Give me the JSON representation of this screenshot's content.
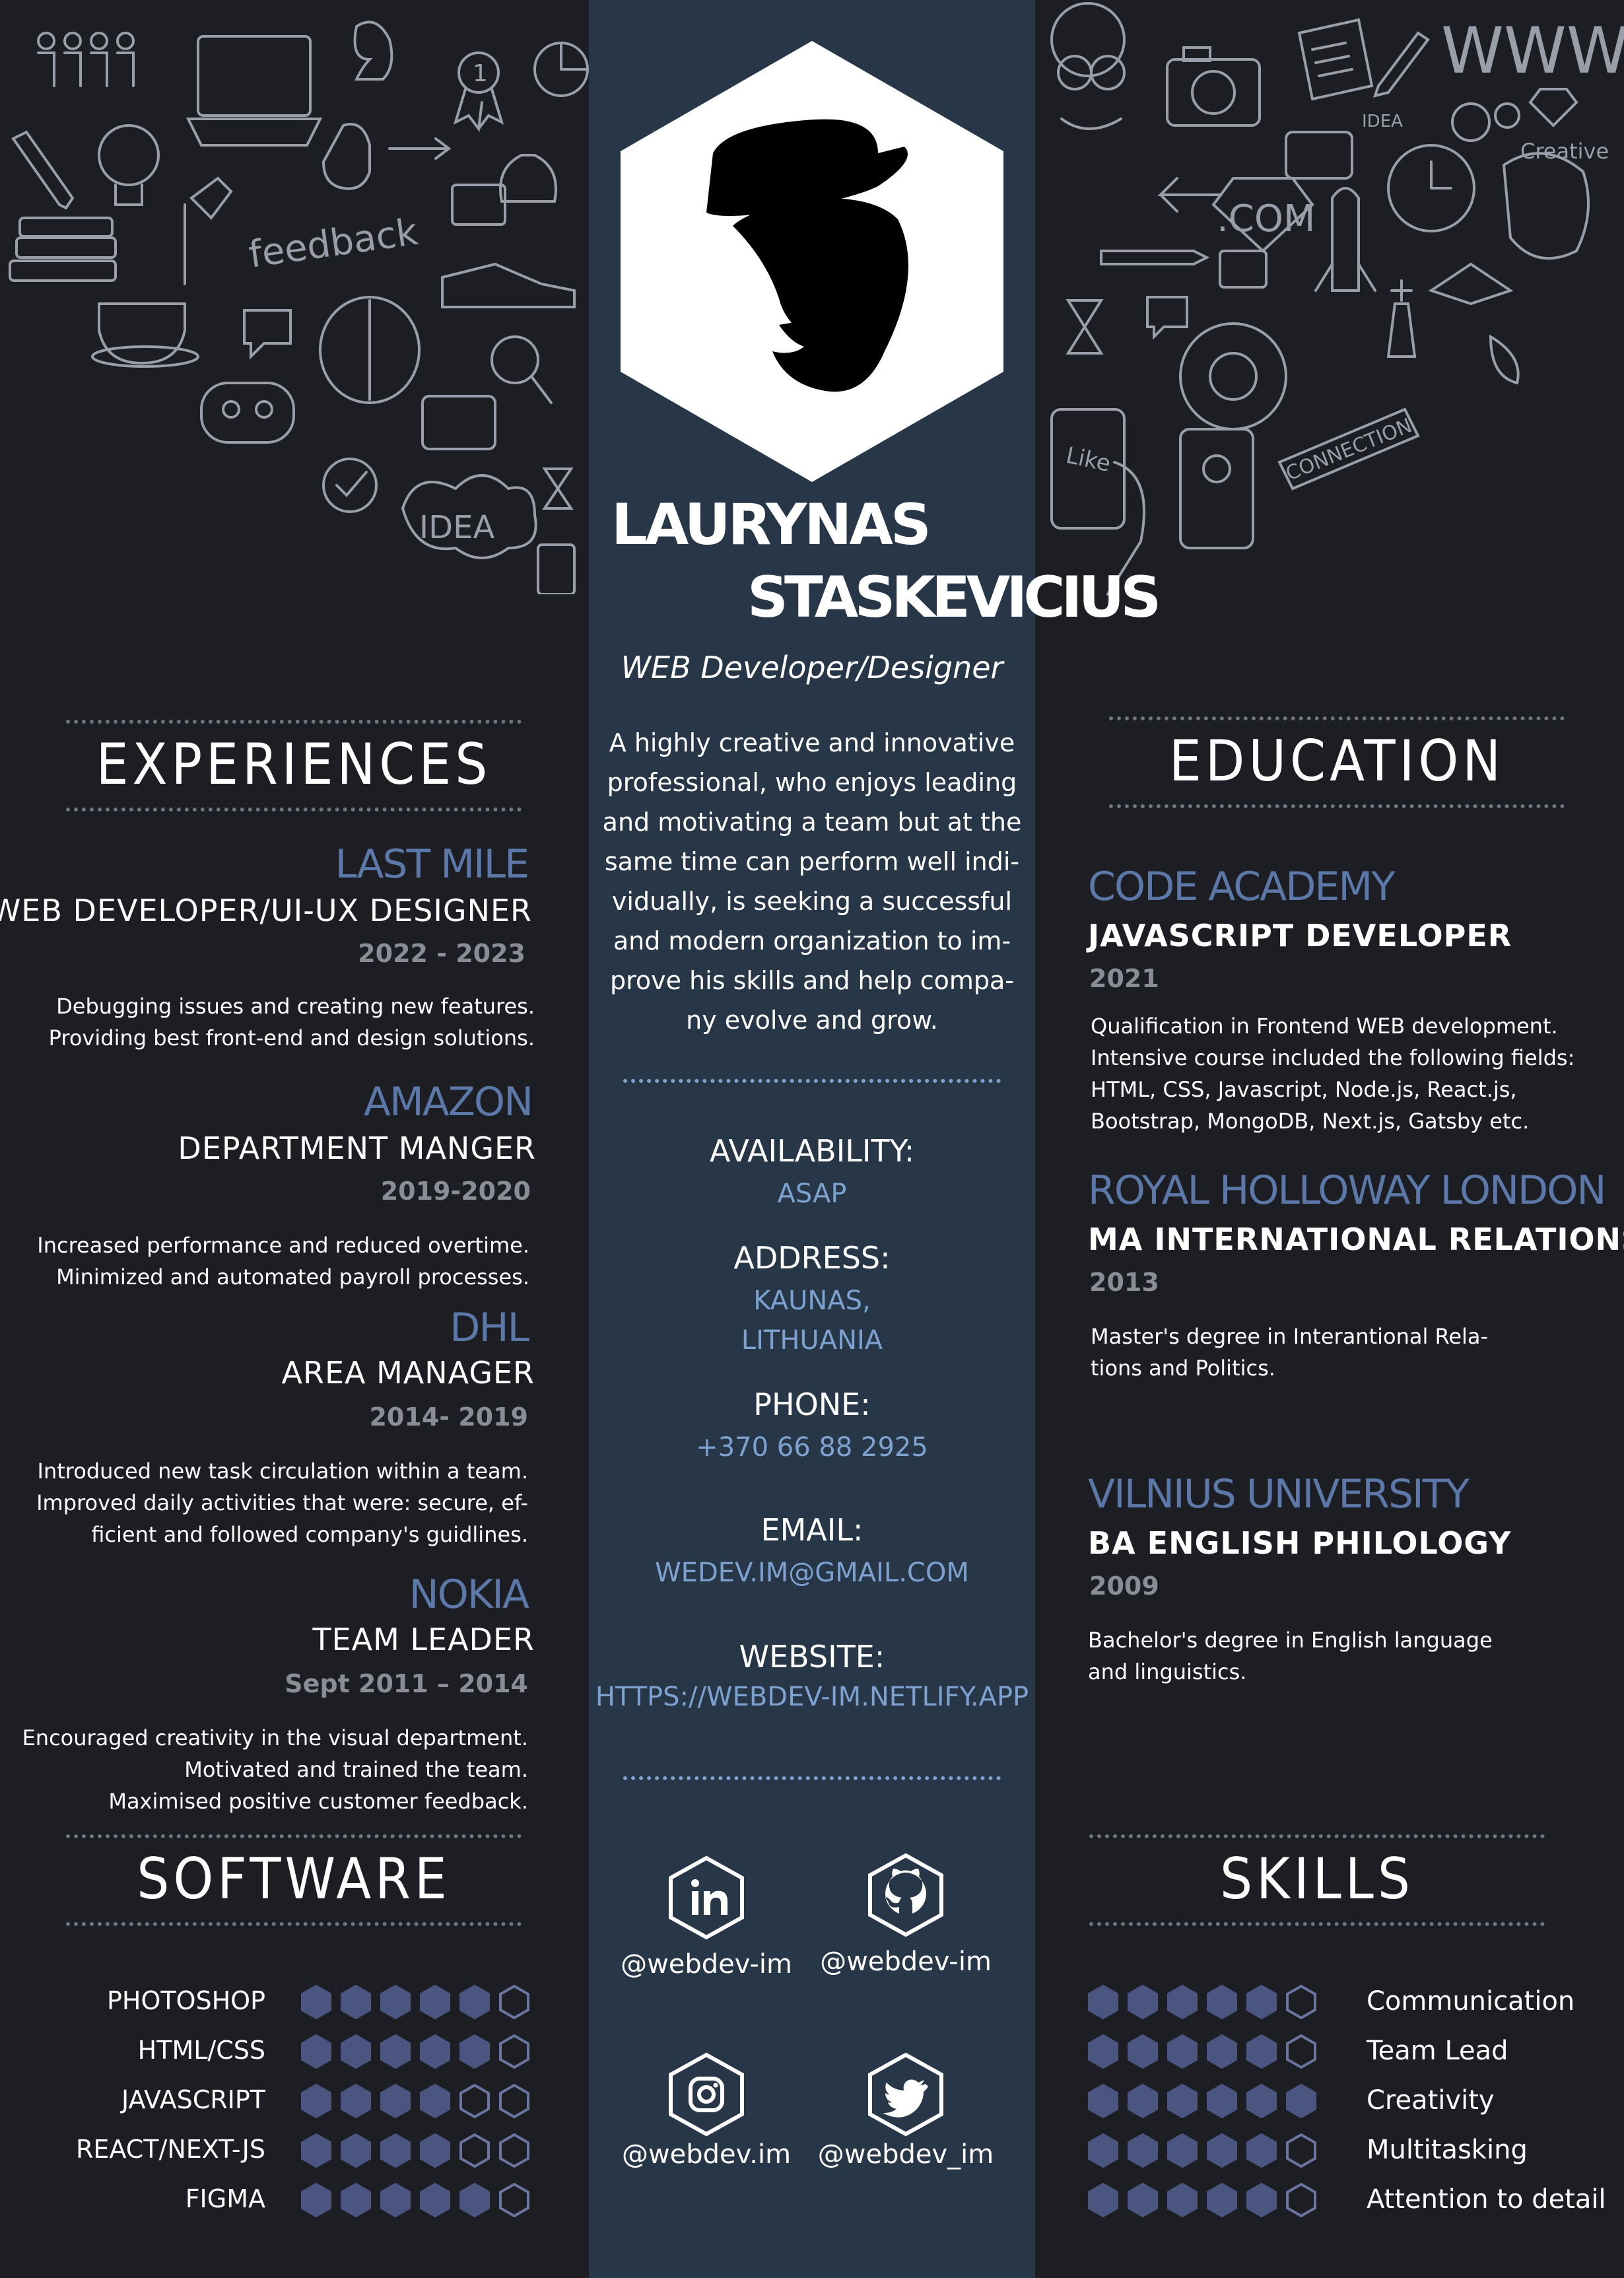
{
  "profile": {
    "first_name": "LAURYNAS",
    "last_name": "STASKEVICIUS",
    "title": "WEB Developer/Designer",
    "summary": "A highly creative and innovative\nprofessional, who enjoys leading\nand motivating a team but at the\nsame time can perform well indi-\nvidually, is seeking a successful\nand modern organization to im-\nprove his skills and help compa-\nny evolve and grow."
  },
  "doodles": {
    "feedback": "feedback",
    "idea": "IDEA",
    "idea_small": "IDEA",
    "www": "WWW",
    "com": ".COM",
    "creative": "Creative",
    "connection": "CONNECTION",
    "like": "Like",
    "badge_number": "1"
  },
  "sections": {
    "experiences": "EXPERIENCES",
    "education": "EDUCATION",
    "software": "SOFTWARE",
    "skills": "SKILLS"
  },
  "experiences": [
    {
      "company": "LAST MILE",
      "role": "WEB DEVELOPER/UI-UX DESIGNER",
      "years": "2022 - 2023",
      "desc": "Debugging issues and creating new features.\nProviding best front-end and design solutions."
    },
    {
      "company": "AMAZON",
      "role": "DEPARTMENT MANGER",
      "years": "2019-2020",
      "desc": "Increased performance and reduced overtime.\nMinimized and automated payroll processes."
    },
    {
      "company": "DHL",
      "role": "AREA MANAGER",
      "years": "2014- 2019",
      "desc": "Introduced new task circulation within a team.\nImproved daily activities that were: secure, ef-\nficient and followed company's guidlines."
    },
    {
      "company": "NOKIA",
      "role": "TEAM LEADER",
      "years": "Sept 2011 – 2014",
      "desc": "Encouraged creativity in the visual department.\nMotivated and trained the team.\nMaximised positive customer feedback."
    }
  ],
  "education": [
    {
      "school": "CODE ACADEMY",
      "degree": "JAVASCRIPT DEVELOPER",
      "year": "2021",
      "desc": "Qualification in Frontend WEB development.\nIntensive course included the following fields:\nHTML, CSS, Javascript, Node.js, React.js,\nBootstrap, MongoDB, Next.js, Gatsby etc."
    },
    {
      "school": "ROYAL HOLLOWAY LONDON",
      "degree": "MA INTERNATIONAL RELATIONS",
      "year": "2013",
      "desc": "Master's degree in Interantional Rela-\ntions and Politics."
    },
    {
      "school": "VILNIUS UNIVERSITY",
      "degree": "BA ENGLISH PHILOLOGY",
      "year": "2009",
      "desc": "Bachelor's degree in English language\nand linguistics."
    }
  ],
  "contact": {
    "availability_label": "AVAILABILITY:",
    "availability": "ASAP",
    "address_label": "ADDRESS:",
    "address": "KAUNAS,\nLITHUANIA",
    "phone_label": "PHONE:",
    "phone": "+370 66 88 2925",
    "email_label": "EMAIL:",
    "email": "WEDEV.IM@GMAIL.COM",
    "website_label": "WEBSITE:",
    "website": "HTTPS://WEBDEV-IM.NETLIFY.APP"
  },
  "social": [
    {
      "icon": "linkedin-icon",
      "handle": "@webdev-im"
    },
    {
      "icon": "github-icon",
      "handle": "@webdev-im"
    },
    {
      "icon": "instagram-icon",
      "handle": "@webdev.im"
    },
    {
      "icon": "twitter-icon",
      "handle": "@webdev_im"
    }
  ],
  "software": [
    {
      "name": "PHOTOSHOP",
      "level": 5,
      "max": 6
    },
    {
      "name": "HTML/CSS",
      "level": 5,
      "max": 6
    },
    {
      "name": "JAVASCRIPT",
      "level": 4,
      "max": 6
    },
    {
      "name": "REACT/NEXT-JS",
      "level": 4,
      "max": 6
    },
    {
      "name": "FIGMA",
      "level": 5,
      "max": 6
    }
  ],
  "skills": [
    {
      "name": "Communication",
      "level": 5,
      "max": 6
    },
    {
      "name": "Team Lead",
      "level": 5,
      "max": 6
    },
    {
      "name": "Creativity",
      "level": 6,
      "max": 6
    },
    {
      "name": "Multitasking",
      "level": 5,
      "max": 6
    },
    {
      "name": "Attention to detail",
      "level": 5,
      "max": 6
    }
  ],
  "colors": {
    "background": "#1c1e23",
    "center_column": "#283748",
    "accent": "#5b78a8",
    "link": "#7ea2cf",
    "hex_filled": "#4a5580",
    "text": "#ffffff",
    "muted": "#8a8d95"
  }
}
